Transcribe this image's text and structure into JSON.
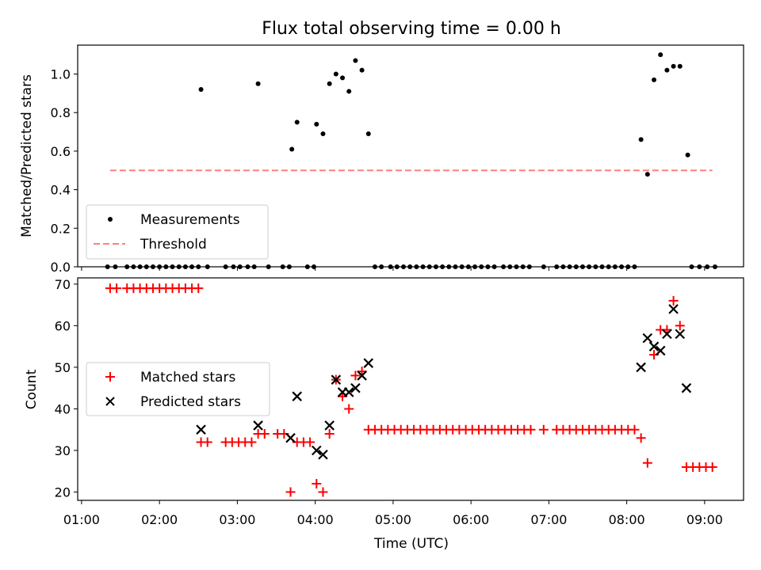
{
  "title": "Flux total observing time = 0.00 h",
  "colors": {
    "measurement": "#000000",
    "threshold": "#ff7f7f",
    "matched": "#ff0000",
    "predicted": "#000000"
  },
  "chart_data": [
    {
      "type": "scatter",
      "panel": "top",
      "ylabel": "Matched/Predicted stars",
      "xlabel": "",
      "ylim": [
        0,
        1.15
      ],
      "yticks": [
        "0.0",
        "0.2",
        "0.4",
        "0.6",
        "0.8",
        "1.0"
      ],
      "legend": {
        "placement": "lower-left",
        "entries": [
          "Measurements",
          "Threshold"
        ]
      },
      "threshold": {
        "name": "Threshold",
        "y": 0.5,
        "x_range": [
          "01:22",
          "09:06"
        ],
        "style": "dashed"
      },
      "series": [
        {
          "name": "Measurements",
          "points": [
            [
              "01:20",
              0
            ],
            [
              "01:26",
              0
            ],
            [
              "01:35",
              0
            ],
            [
              "01:40",
              0
            ],
            [
              "01:45",
              0
            ],
            [
              "01:50",
              0
            ],
            [
              "01:55",
              0
            ],
            [
              "02:00",
              0
            ],
            [
              "02:05",
              0
            ],
            [
              "02:10",
              0
            ],
            [
              "02:15",
              0
            ],
            [
              "02:20",
              0
            ],
            [
              "02:25",
              0
            ],
            [
              "02:30",
              0
            ],
            [
              "02:32",
              0.92
            ],
            [
              "02:37",
              0
            ],
            [
              "02:51",
              0
            ],
            [
              "02:57",
              0
            ],
            [
              "03:02",
              0
            ],
            [
              "03:08",
              0
            ],
            [
              "03:13",
              0
            ],
            [
              "03:16",
              0.95
            ],
            [
              "03:24",
              0
            ],
            [
              "03:35",
              0
            ],
            [
              "03:40",
              0
            ],
            [
              "03:42",
              0.61
            ],
            [
              "03:46",
              0.75
            ],
            [
              "03:54",
              0
            ],
            [
              "03:59",
              0
            ],
            [
              "04:01",
              0.74
            ],
            [
              "04:06",
              0.69
            ],
            [
              "04:11",
              0.95
            ],
            [
              "04:16",
              1.0
            ],
            [
              "04:21",
              0.98
            ],
            [
              "04:26",
              0.91
            ],
            [
              "04:31",
              1.07
            ],
            [
              "04:36",
              1.02
            ],
            [
              "04:41",
              0.69
            ],
            [
              "04:46",
              0
            ],
            [
              "04:51",
              0
            ],
            [
              "04:58",
              0
            ],
            [
              "05:03",
              0
            ],
            [
              "05:08",
              0
            ],
            [
              "05:13",
              0
            ],
            [
              "05:18",
              0
            ],
            [
              "05:23",
              0
            ],
            [
              "05:28",
              0
            ],
            [
              "05:33",
              0
            ],
            [
              "05:38",
              0
            ],
            [
              "05:43",
              0
            ],
            [
              "05:48",
              0
            ],
            [
              "05:53",
              0
            ],
            [
              "05:58",
              0
            ],
            [
              "06:03",
              0
            ],
            [
              "06:08",
              0
            ],
            [
              "06:13",
              0
            ],
            [
              "06:18",
              0
            ],
            [
              "06:25",
              0
            ],
            [
              "06:30",
              0
            ],
            [
              "06:35",
              0
            ],
            [
              "06:40",
              0
            ],
            [
              "06:45",
              0
            ],
            [
              "06:56",
              0
            ],
            [
              "07:06",
              0
            ],
            [
              "07:11",
              0
            ],
            [
              "07:16",
              0
            ],
            [
              "07:21",
              0
            ],
            [
              "07:26",
              0
            ],
            [
              "07:31",
              0
            ],
            [
              "07:36",
              0
            ],
            [
              "07:41",
              0
            ],
            [
              "07:46",
              0
            ],
            [
              "07:51",
              0
            ],
            [
              "07:56",
              0
            ],
            [
              "08:01",
              0
            ],
            [
              "08:06",
              0
            ],
            [
              "08:11",
              0.66
            ],
            [
              "08:16",
              0.48
            ],
            [
              "08:21",
              0.97
            ],
            [
              "08:26",
              1.1
            ],
            [
              "08:31",
              1.02
            ],
            [
              "08:36",
              1.04
            ],
            [
              "08:41",
              1.04
            ],
            [
              "08:47",
              0.58
            ],
            [
              "08:50",
              0
            ],
            [
              "08:56",
              0
            ],
            [
              "09:02",
              0
            ],
            [
              "09:08",
              0
            ]
          ]
        }
      ]
    },
    {
      "type": "scatter",
      "panel": "bottom",
      "ylabel": "Count",
      "xlabel": "Time (UTC)",
      "xlim": [
        "00:57",
        "09:30"
      ],
      "xticks": [
        "01:00",
        "02:00",
        "03:00",
        "04:00",
        "05:00",
        "06:00",
        "07:00",
        "08:00",
        "09:00"
      ],
      "ylim": [
        18,
        71.5
      ],
      "yticks": [
        "20",
        "30",
        "40",
        "50",
        "60",
        "70"
      ],
      "legend": {
        "placement": "center-left",
        "entries": [
          "Matched stars",
          "Predicted stars"
        ]
      },
      "series": [
        {
          "name": "Matched stars",
          "marker": "plus",
          "points": [
            [
              "01:22",
              69
            ],
            [
              "01:27",
              69
            ],
            [
              "01:35",
              69
            ],
            [
              "01:40",
              69
            ],
            [
              "01:45",
              69
            ],
            [
              "01:50",
              69
            ],
            [
              "01:55",
              69
            ],
            [
              "02:00",
              69
            ],
            [
              "02:05",
              69
            ],
            [
              "02:10",
              69
            ],
            [
              "02:15",
              69
            ],
            [
              "02:20",
              69
            ],
            [
              "02:25",
              69
            ],
            [
              "02:30",
              69
            ],
            [
              "02:32",
              32
            ],
            [
              "02:37",
              32
            ],
            [
              "02:51",
              32
            ],
            [
              "02:56",
              32
            ],
            [
              "03:01",
              32
            ],
            [
              "03:06",
              32
            ],
            [
              "03:11",
              32
            ],
            [
              "03:16",
              34
            ],
            [
              "03:21",
              34
            ],
            [
              "03:31",
              34
            ],
            [
              "03:36",
              34
            ],
            [
              "03:41",
              20
            ],
            [
              "03:46",
              32
            ],
            [
              "03:51",
              32
            ],
            [
              "03:56",
              32
            ],
            [
              "04:01",
              22
            ],
            [
              "04:06",
              20
            ],
            [
              "04:11",
              34
            ],
            [
              "04:16",
              47
            ],
            [
              "04:21",
              43
            ],
            [
              "04:26",
              40
            ],
            [
              "04:31",
              48
            ],
            [
              "04:36",
              49
            ],
            [
              "04:41",
              35
            ],
            [
              "04:46",
              35
            ],
            [
              "04:51",
              35
            ],
            [
              "04:56",
              35
            ],
            [
              "05:01",
              35
            ],
            [
              "05:06",
              35
            ],
            [
              "05:11",
              35
            ],
            [
              "05:16",
              35
            ],
            [
              "05:21",
              35
            ],
            [
              "05:26",
              35
            ],
            [
              "05:31",
              35
            ],
            [
              "05:36",
              35
            ],
            [
              "05:41",
              35
            ],
            [
              "05:46",
              35
            ],
            [
              "05:51",
              35
            ],
            [
              "05:56",
              35
            ],
            [
              "06:01",
              35
            ],
            [
              "06:06",
              35
            ],
            [
              "06:11",
              35
            ],
            [
              "06:16",
              35
            ],
            [
              "06:21",
              35
            ],
            [
              "06:26",
              35
            ],
            [
              "06:31",
              35
            ],
            [
              "06:36",
              35
            ],
            [
              "06:41",
              35
            ],
            [
              "06:46",
              35
            ],
            [
              "06:56",
              35
            ],
            [
              "07:06",
              35
            ],
            [
              "07:11",
              35
            ],
            [
              "07:16",
              35
            ],
            [
              "07:21",
              35
            ],
            [
              "07:26",
              35
            ],
            [
              "07:31",
              35
            ],
            [
              "07:36",
              35
            ],
            [
              "07:41",
              35
            ],
            [
              "07:46",
              35
            ],
            [
              "07:51",
              35
            ],
            [
              "07:56",
              35
            ],
            [
              "08:01",
              35
            ],
            [
              "08:06",
              35
            ],
            [
              "08:11",
              33
            ],
            [
              "08:16",
              27
            ],
            [
              "08:21",
              53
            ],
            [
              "08:26",
              59
            ],
            [
              "08:31",
              59
            ],
            [
              "08:36",
              66
            ],
            [
              "08:41",
              60
            ],
            [
              "08:46",
              26
            ],
            [
              "08:51",
              26
            ],
            [
              "08:56",
              26
            ],
            [
              "09:01",
              26
            ],
            [
              "09:06",
              26
            ]
          ]
        },
        {
          "name": "Predicted stars",
          "marker": "x",
          "points": [
            [
              "02:32",
              35
            ],
            [
              "03:16",
              36
            ],
            [
              "03:41",
              33
            ],
            [
              "03:46",
              43
            ],
            [
              "04:01",
              30
            ],
            [
              "04:06",
              29
            ],
            [
              "04:11",
              36
            ],
            [
              "04:16",
              47
            ],
            [
              "04:21",
              44
            ],
            [
              "04:26",
              44
            ],
            [
              "04:31",
              45
            ],
            [
              "04:36",
              48
            ],
            [
              "04:41",
              51
            ],
            [
              "08:11",
              50
            ],
            [
              "08:16",
              57
            ],
            [
              "08:21",
              55
            ],
            [
              "08:26",
              54
            ],
            [
              "08:31",
              58
            ],
            [
              "08:36",
              64
            ],
            [
              "08:41",
              58
            ],
            [
              "08:46",
              45
            ]
          ]
        }
      ]
    }
  ]
}
